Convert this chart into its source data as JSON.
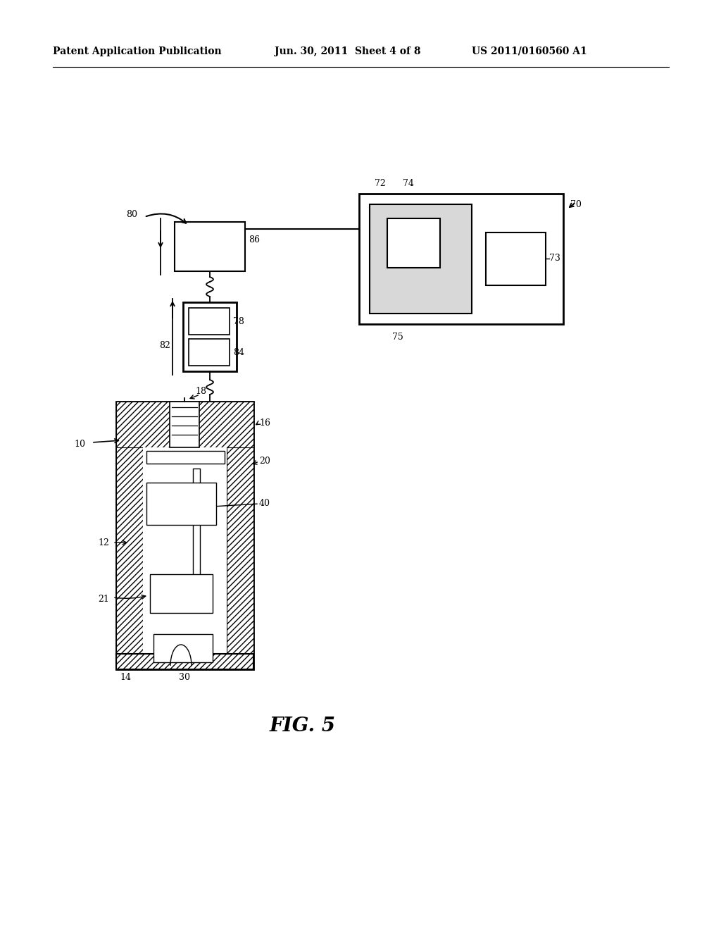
{
  "background_color": "#ffffff",
  "header_left": "Patent Application Publication",
  "header_mid": "Jun. 30, 2011  Sheet 4 of 8",
  "header_right": "US 2011/0160560 A1",
  "fig_label": "FIG. 5",
  "header_fontsize": 10,
  "fig_label_fontsize": 20
}
